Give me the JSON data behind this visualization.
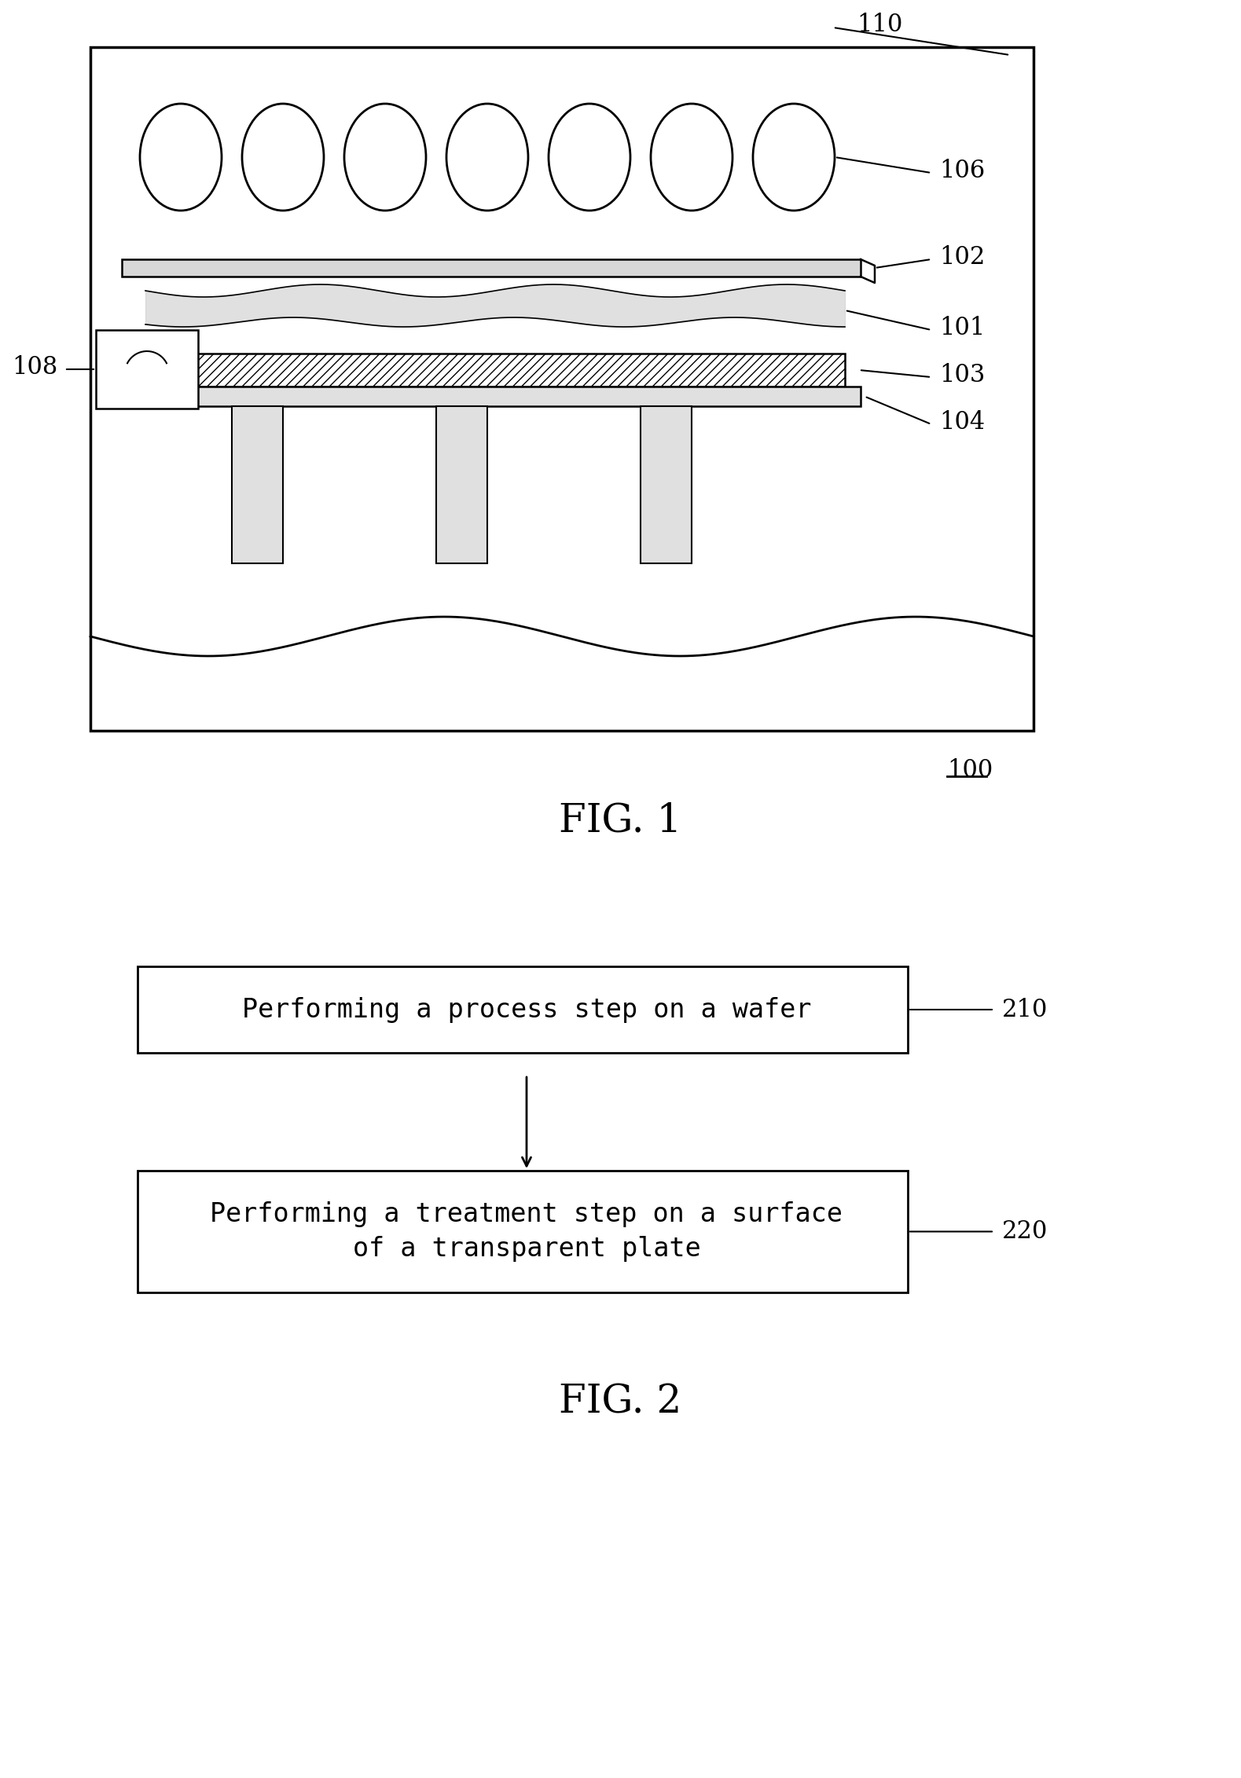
{
  "fig_width": 15.79,
  "fig_height": 22.63,
  "bg_color": "#ffffff",
  "line_color": "#000000",
  "fig1_label": "FIG. 1",
  "fig2_label": "FIG. 2",
  "label_100": "100",
  "label_101": "101",
  "label_102": "102",
  "label_103": "103",
  "label_104": "104",
  "label_106": "106",
  "label_108": "108",
  "label_110": "110",
  "label_210": "210",
  "label_220": "220",
  "box210_text": "Performing a process step on a wafer",
  "box220_line1": "Performing a treatment step on a surface",
  "box220_line2": "of a transparent plate"
}
